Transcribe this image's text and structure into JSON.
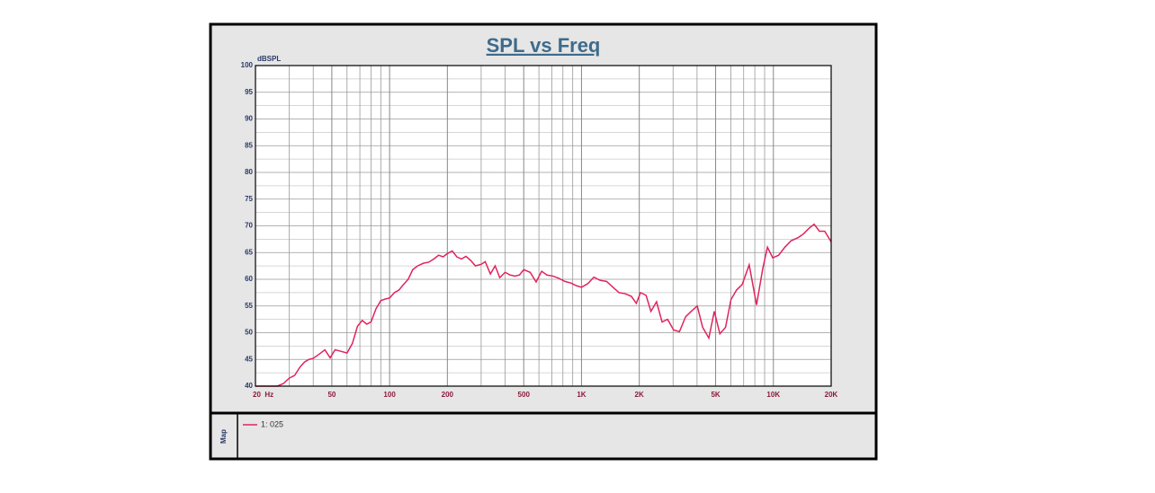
{
  "chart_data": {
    "type": "line",
    "title": "SPL vs Freq",
    "y_label": "dBSPL",
    "legend_title": "Map",
    "x_scale": "log",
    "grid": true,
    "xlim": [
      20,
      20000
    ],
    "ylim": [
      40,
      100
    ],
    "xticks": [
      {
        "value": 20,
        "label": "20  Hz"
      },
      50,
      100,
      200,
      500,
      {
        "value": 1000,
        "label": "1K"
      },
      {
        "value": 2000,
        "label": "2K"
      },
      {
        "value": 5000,
        "label": "5K"
      },
      {
        "value": 10000,
        "label": "10K"
      },
      {
        "value": 20000,
        "label": "20K"
      }
    ],
    "xminor": [
      30,
      40,
      60,
      70,
      80,
      90,
      300,
      400,
      600,
      700,
      800,
      900,
      3000,
      4000,
      6000,
      7000,
      8000,
      9000
    ],
    "yticks": [
      40,
      45,
      50,
      55,
      60,
      65,
      70,
      75,
      80,
      85,
      90,
      95,
      100
    ],
    "yminor": [
      42.5,
      47.5,
      52.5,
      57.5,
      62.5,
      67.5,
      72.5,
      77.5,
      82.5,
      87.5,
      92.5,
      97.5
    ],
    "x": [
      20,
      22,
      24,
      26,
      28,
      30,
      32,
      34,
      36,
      38,
      40,
      43,
      46,
      49,
      52,
      56,
      60,
      64,
      68,
      72,
      76,
      80,
      85,
      90,
      95,
      100,
      106,
      112,
      118,
      125,
      132,
      140,
      150,
      160,
      170,
      180,
      190,
      200,
      212,
      224,
      237,
      250,
      265,
      280,
      300,
      315,
      335,
      355,
      375,
      400,
      425,
      450,
      475,
      500,
      540,
      580,
      620,
      660,
      710,
      760,
      820,
      880,
      940,
      1000,
      1080,
      1160,
      1250,
      1350,
      1460,
      1570,
      1690,
      1820,
      1930,
      2030,
      2170,
      2300,
      2460,
      2630,
      2810,
      3020,
      3240,
      3490,
      3730,
      4010,
      4280,
      4610,
      4920,
      5260,
      5630,
      6010,
      6430,
      6870,
      7480,
      8170,
      8800,
      9310,
      9920,
      10650,
      11470,
      12360,
      13470,
      14350,
      15290,
      16300,
      17370,
      18510,
      20000
    ],
    "series": [
      {
        "name": "1: 025",
        "color": "#e0245e",
        "values": [
          40,
          40,
          40,
          40,
          40.5,
          41.5,
          42,
          43.5,
          44.5,
          45,
          45.2,
          46,
          46.8,
          45.3,
          46.8,
          46.5,
          46.2,
          48,
          51.2,
          52.3,
          51.6,
          52,
          54.5,
          56,
          56.3,
          56.5,
          57.5,
          58,
          59,
          60,
          61.8,
          62.5,
          63,
          63.2,
          63.8,
          64.5,
          64.2,
          64.8,
          65.3,
          64.2,
          63.8,
          64.3,
          63.5,
          62.5,
          62.8,
          63.3,
          61,
          62.5,
          60.3,
          61.3,
          60.8,
          60.6,
          60.8,
          61.8,
          61.3,
          59.5,
          61.5,
          60.8,
          60.6,
          60.2,
          59.6,
          59.3,
          58.8,
          58.5,
          59.2,
          60.4,
          59.8,
          59.6,
          58.5,
          57.5,
          57.3,
          56.8,
          55.5,
          57.5,
          57,
          54,
          55.8,
          52,
          52.5,
          50.5,
          50.2,
          53,
          54,
          55,
          51,
          49,
          54,
          49.8,
          51,
          56.2,
          58,
          59,
          62.7,
          55.2,
          62,
          66,
          64,
          64.5,
          66,
          67.2,
          67.8,
          68.5,
          69.5,
          70.3,
          69,
          69,
          67
        ]
      }
    ]
  }
}
